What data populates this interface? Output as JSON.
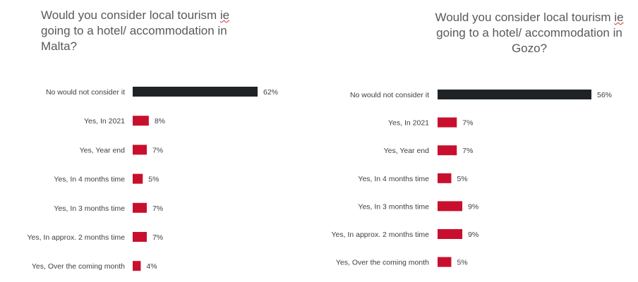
{
  "chart_data": [
    {
      "type": "bar",
      "orientation": "horizontal",
      "title": "Would you consider local tourism ie going to a hotel/ accommodation in Malta?",
      "title_lines": [
        "Would you consider local tourism ie",
        "going to a hotel/ accommodation in",
        "Malta?"
      ],
      "categories": [
        "No would not consider it",
        "Yes, In 2021",
        "Yes, Year end",
        "Yes, In 4 months time",
        "Yes, In 3 months time",
        "Yes, In approx. 2 months time",
        "Yes, Over the coming month"
      ],
      "values": [
        62,
        8,
        7,
        5,
        7,
        7,
        4
      ],
      "value_labels": [
        "62%",
        "8%",
        "7%",
        "5%",
        "7%",
        "7%",
        "4%"
      ],
      "colors": [
        "#1f2326",
        "#c8102e",
        "#c8102e",
        "#c8102e",
        "#c8102e",
        "#c8102e",
        "#c8102e"
      ],
      "unit": "%",
      "xlim": [
        0,
        62
      ],
      "grid": false,
      "legend": "none"
    },
    {
      "type": "bar",
      "orientation": "horizontal",
      "title": "Would you consider local tourism ie going to a hotel/ accommodation in Gozo?",
      "title_lines": [
        "Would you consider local tourism ie",
        "going to a hotel/ accommodation in",
        "Gozo?"
      ],
      "categories": [
        "No would not consider it",
        "Yes, In 2021",
        "Yes, Year end",
        "Yes, In 4 months time",
        "Yes, In 3 months time",
        "Yes, In approx. 2 months time",
        "Yes, Over the coming month"
      ],
      "values": [
        56,
        7,
        7,
        5,
        9,
        9,
        5
      ],
      "value_labels": [
        "56%",
        "7%",
        "7%",
        "5%",
        "9%",
        "9%",
        "5%"
      ],
      "colors": [
        "#1f2326",
        "#c8102e",
        "#c8102e",
        "#c8102e",
        "#c8102e",
        "#c8102e",
        "#c8102e"
      ],
      "unit": "%",
      "xlim": [
        0,
        56
      ],
      "grid": false,
      "legend": "none"
    }
  ]
}
